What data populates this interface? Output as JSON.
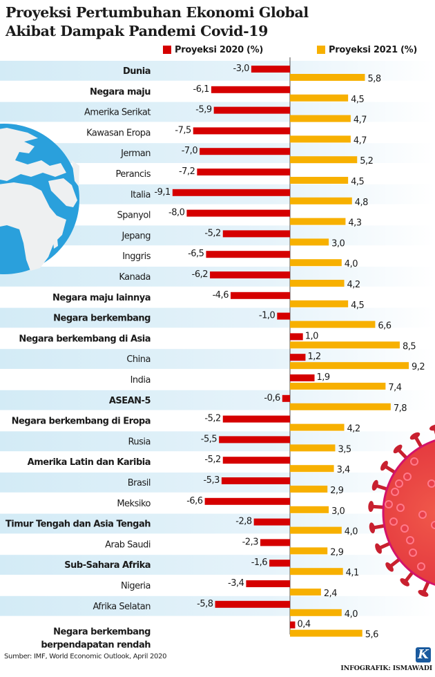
{
  "title_line1": "Proyeksi Pertumbuhan Ekonomi Global",
  "title_line2": "Akibat Dampak Pandemi Covid-19",
  "legend": [
    {
      "label": "Proyeksi 2020 (%)",
      "color": "#d50000"
    },
    {
      "label": "Proyeksi 2021 (%)",
      "color": "#f7b000"
    }
  ],
  "source": "Sumber: IMF, World Economic Outlook, April 2020",
  "credit": "INFOGRAFIK: ISMAWADI",
  "logo_letter": "K",
  "colors": {
    "series2020": "#d50000",
    "series2021": "#f7b000",
    "stripe": "#d3ebf6",
    "axis": "#777777",
    "globe_ocean": "#2aa0dc",
    "globe_land": "#eef0f1",
    "virus": "#d7263d"
  },
  "chart_data": {
    "type": "bar",
    "orientation": "horizontal",
    "title": "Proyeksi Pertumbuhan Ekonomi Global Akibat Dampak Pandemi Covid-19",
    "xlabel": "",
    "ylabel": "",
    "grid": false,
    "legend_position": "top",
    "decimal_separator": ",",
    "categories": [
      {
        "label": "Dunia",
        "bold": true
      },
      {
        "label": "Negara maju",
        "bold": true
      },
      {
        "label": "Amerika Serikat",
        "bold": false
      },
      {
        "label": "Kawasan Eropa",
        "bold": false
      },
      {
        "label": "Jerman",
        "bold": false
      },
      {
        "label": "Perancis",
        "bold": false
      },
      {
        "label": "Italia",
        "bold": false
      },
      {
        "label": "Spanyol",
        "bold": false
      },
      {
        "label": "Jepang",
        "bold": false
      },
      {
        "label": "Inggris",
        "bold": false
      },
      {
        "label": "Kanada",
        "bold": false
      },
      {
        "label": "Negara maju lainnya",
        "bold": true
      },
      {
        "label": "Negara berkembang",
        "bold": true
      },
      {
        "label": "Negara berkembang di Asia",
        "bold": true
      },
      {
        "label": "China",
        "bold": false
      },
      {
        "label": "India",
        "bold": false
      },
      {
        "label": "ASEAN-5",
        "bold": true
      },
      {
        "label": "Negara berkembang di Eropa",
        "bold": true
      },
      {
        "label": "Rusia",
        "bold": false
      },
      {
        "label": "Amerika Latin dan Karibia",
        "bold": true
      },
      {
        "label": "Brasil",
        "bold": false
      },
      {
        "label": "Meksiko",
        "bold": false
      },
      {
        "label": "Timur Tengah dan Asia Tengah",
        "bold": true
      },
      {
        "label": "Arab Saudi",
        "bold": false
      },
      {
        "label": "Sub-Sahara Afrika",
        "bold": true
      },
      {
        "label": "Nigeria",
        "bold": false
      },
      {
        "label": "Afrika Selatan",
        "bold": false
      },
      {
        "label": "Negara berkembang\nberpendapatan rendah",
        "bold": true
      }
    ],
    "series": [
      {
        "name": "Proyeksi 2020 (%)",
        "color": "#d50000",
        "values": [
          -3.0,
          -6.1,
          -5.9,
          -7.5,
          -7.0,
          -7.2,
          -9.1,
          -8.0,
          -5.2,
          -6.5,
          -6.2,
          -4.6,
          -1.0,
          1.0,
          1.2,
          1.9,
          -0.6,
          -5.2,
          -5.5,
          -5.2,
          -5.3,
          -6.6,
          -2.8,
          -2.3,
          -1.6,
          -3.4,
          -5.8,
          0.4
        ]
      },
      {
        "name": "Proyeksi 2021 (%)",
        "color": "#f7b000",
        "values": [
          5.8,
          4.5,
          4.7,
          4.7,
          5.2,
          4.5,
          4.8,
          4.3,
          3.0,
          4.0,
          4.2,
          4.5,
          6.6,
          8.5,
          9.2,
          7.4,
          7.8,
          4.2,
          3.5,
          3.4,
          2.9,
          3.0,
          4.0,
          2.9,
          4.1,
          2.4,
          4.0,
          5.6
        ]
      }
    ],
    "xlim": [
      -10,
      10
    ]
  }
}
